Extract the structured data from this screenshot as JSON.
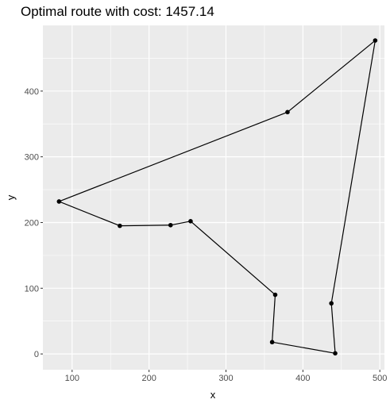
{
  "chart_data": {
    "type": "line",
    "title": "Optimal route with cost: 1457.14",
    "xlabel": "x",
    "ylabel": "y",
    "xlim": [
      62,
      506
    ],
    "ylim": [
      -24,
      500
    ],
    "x_ticks": [
      100,
      200,
      300,
      400,
      500
    ],
    "y_ticks": [
      0,
      100,
      200,
      300,
      400
    ],
    "grid": true,
    "colors": {
      "panel_background": "#ebebeb",
      "grid_major": "#ffffff",
      "line": "#000000",
      "point": "#000000"
    },
    "series": [
      {
        "points": [
          {
            "x": 83,
            "y": 232
          },
          {
            "x": 380,
            "y": 368
          },
          {
            "x": 494,
            "y": 477
          },
          {
            "x": 437,
            "y": 77
          },
          {
            "x": 442,
            "y": 1
          },
          {
            "x": 360,
            "y": 18
          },
          {
            "x": 364,
            "y": 90
          },
          {
            "x": 254,
            "y": 202
          },
          {
            "x": 228,
            "y": 196
          },
          {
            "x": 162,
            "y": 195
          },
          {
            "x": 83,
            "y": 232
          }
        ]
      }
    ]
  }
}
